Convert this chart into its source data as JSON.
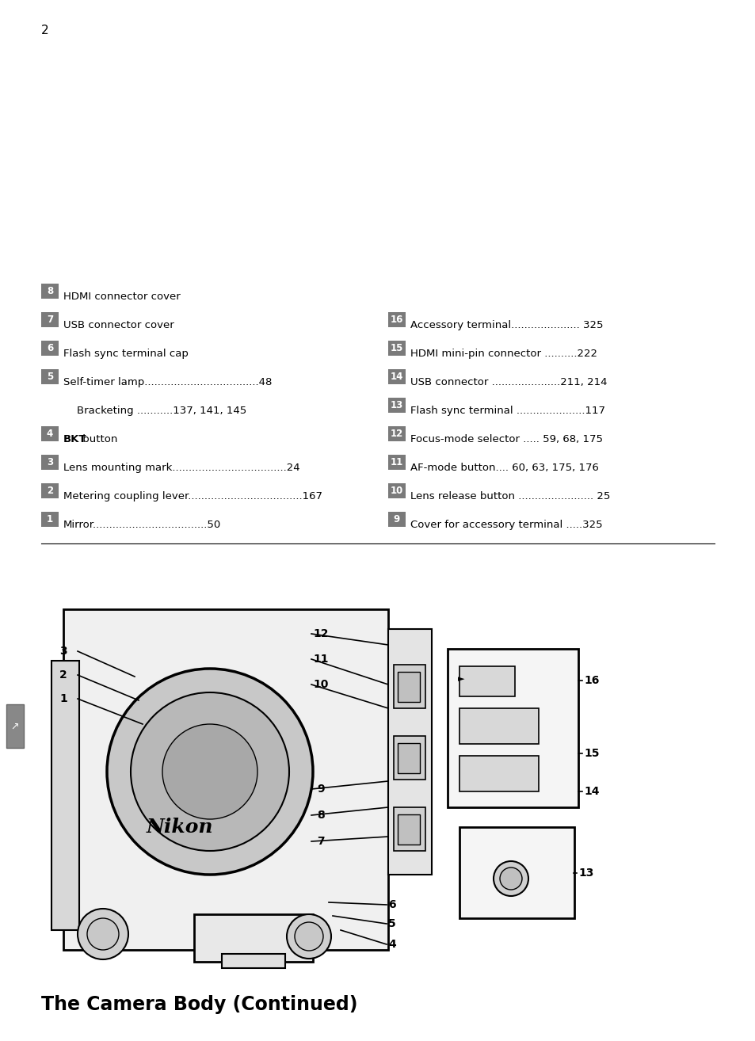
{
  "title": "The Camera Body (Continued)",
  "title_fontsize": 17,
  "bg_color": "#ffffff",
  "badge_color": "#7a7a7a",
  "badge_text_color": "#ffffff",
  "page_number": "2",
  "left_items": [
    {
      "num": "1",
      "text": "Mirror",
      "dots": true,
      "page": "50",
      "bold_part": null
    },
    {
      "num": "2",
      "text": "Metering coupling lever",
      "dots": true,
      "page": "167",
      "bold_part": null
    },
    {
      "num": "3",
      "text": "Lens mounting mark",
      "dots": true,
      "page": "24",
      "bold_part": null
    },
    {
      "num": "4",
      "text": "BKT button",
      "dots": false,
      "page": "",
      "bold_part": "BKT",
      "continuation": "Bracketing",
      "cont_dots": true,
      "cont_page": "137, 141, 145"
    },
    {
      "num": "5",
      "text": "Self-timer lamp",
      "dots": true,
      "page": "48",
      "bold_part": null
    },
    {
      "num": "6",
      "text": "Flash sync terminal cap",
      "dots": false,
      "page": "",
      "bold_part": null
    },
    {
      "num": "7",
      "text": "USB connector cover",
      "dots": false,
      "page": "",
      "bold_part": null
    },
    {
      "num": "8",
      "text": "HDMI connector cover",
      "dots": false,
      "page": "",
      "bold_part": null
    }
  ],
  "right_items": [
    {
      "num": "9",
      "text": "Cover for accessory terminal .....325"
    },
    {
      "num": "10",
      "text": "Lens release button ....................... 25"
    },
    {
      "num": "11",
      "text": "AF-mode button.... 60, 63, 175, 176"
    },
    {
      "num": "12",
      "text": "Focus-mode selector ..... 59, 68, 175"
    },
    {
      "num": "13",
      "text": "Flash sync terminal .....................117"
    },
    {
      "num": "14",
      "text": "USB connector .....................211, 214"
    },
    {
      "num": "15",
      "text": "HDMI mini-pin connector ..........222"
    },
    {
      "num": "16",
      "text": "Accessory terminal..................... 325"
    }
  ]
}
